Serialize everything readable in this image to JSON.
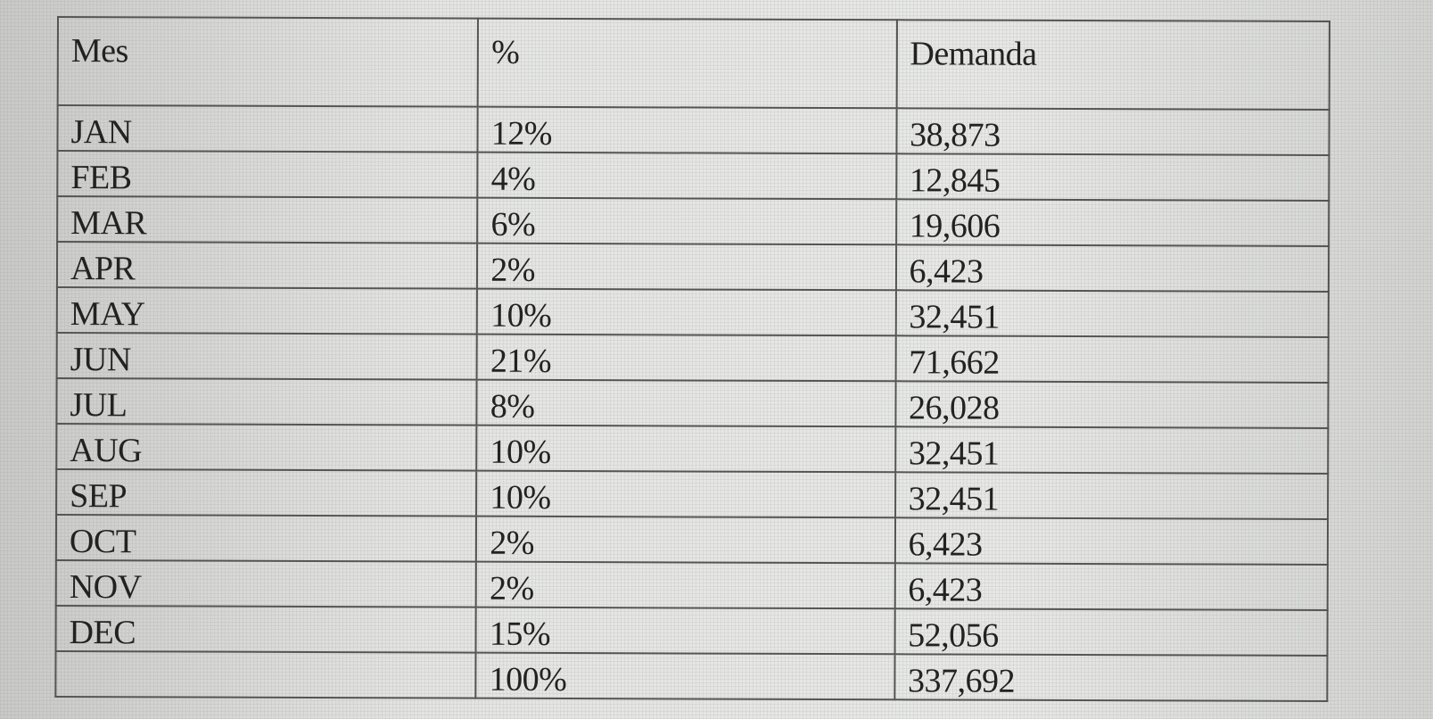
{
  "table": {
    "headers": [
      "Mes",
      "%",
      "Demanda"
    ],
    "rows": [
      [
        "JAN",
        "12%",
        "38,873"
      ],
      [
        "FEB",
        "4%",
        "12,845"
      ],
      [
        "MAR",
        "6%",
        "19,606"
      ],
      [
        "APR",
        "2%",
        "6,423"
      ],
      [
        "MAY",
        "10%",
        "32,451"
      ],
      [
        "JUN",
        "21%",
        "71,662"
      ],
      [
        "JUL",
        "8%",
        "26,028"
      ],
      [
        "AUG",
        "10%",
        "32,451"
      ],
      [
        "SEP",
        "10%",
        "32,451"
      ],
      [
        "OCT",
        "2%",
        "6,423"
      ],
      [
        "NOV",
        "2%",
        "6,423"
      ],
      [
        "DEC",
        "15%",
        "52,056"
      ],
      [
        "",
        "100%",
        "337,692"
      ]
    ]
  }
}
